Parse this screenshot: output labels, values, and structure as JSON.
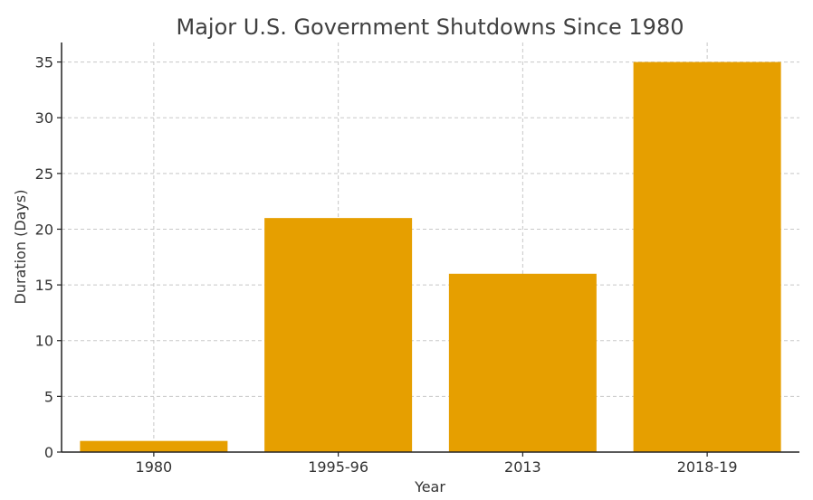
{
  "chart_data": {
    "type": "bar",
    "title": "Major U.S. Government Shutdowns Since 1980",
    "xlabel": "Year",
    "ylabel": "Duration (Days)",
    "categories": [
      "1980",
      "1995-96",
      "2013",
      "2018-19"
    ],
    "values": [
      1,
      21,
      16,
      35
    ],
    "ylim": [
      0,
      36.75
    ],
    "yticks": [
      0,
      5,
      10,
      15,
      20,
      25,
      30,
      35
    ],
    "grid": true,
    "bar_color": "#e69f00"
  }
}
